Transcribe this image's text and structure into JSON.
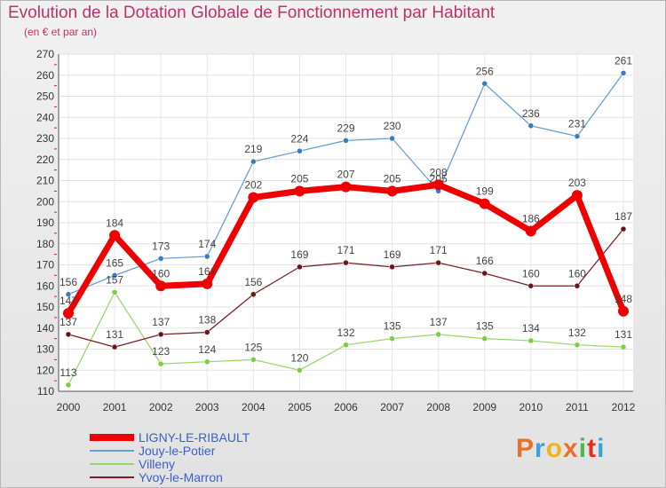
{
  "title": "Evolution de la Dotation Globale de Fonctionnement par Habitant",
  "subtitle": "(en € et par an)",
  "logo": {
    "text": "Proxiti",
    "colors": [
      "#e8702a",
      "#3aa0d8",
      "#f2b21e",
      "#e8702a",
      "#4db848",
      "#e0301e",
      "#3aa0d8"
    ]
  },
  "chart_data": {
    "type": "line",
    "x": [
      "2000",
      "2001",
      "2002",
      "2003",
      "2004",
      "2005",
      "2006",
      "2007",
      "2008",
      "2009",
      "2010",
      "2011",
      "2012"
    ],
    "ylim": [
      110,
      270
    ],
    "yticks": [
      110,
      120,
      130,
      140,
      150,
      160,
      170,
      180,
      190,
      200,
      210,
      220,
      230,
      240,
      250,
      260,
      270
    ],
    "grid": true,
    "legend_position": "bottom-left",
    "series": [
      {
        "name": "Jouy-le-Potier",
        "color": "#6b9fd0",
        "marker": "#3a7bc0",
        "width": 1.3,
        "values": [
          156,
          165,
          173,
          174,
          219,
          224,
          229,
          230,
          205,
          256,
          236,
          231,
          261
        ]
      },
      {
        "name": "Villeny",
        "color": "#9ad86a",
        "marker": "#7ccc44",
        "width": 1.3,
        "values": [
          113,
          157,
          123,
          124,
          125,
          120,
          132,
          135,
          137,
          135,
          134,
          132,
          131
        ]
      },
      {
        "name": "Yvoy-le-Marron",
        "color": "#7a1f25",
        "marker": "#6a1519",
        "width": 1.3,
        "values": [
          137,
          131,
          137,
          138,
          156,
          169,
          171,
          169,
          171,
          166,
          160,
          160,
          187
        ]
      },
      {
        "name": "LIGNY-LE-RIBAULT",
        "color": "#ee0000",
        "marker": "#ee0000",
        "width": 7,
        "values": [
          147,
          184,
          160,
          161,
          202,
          205,
          207,
          205,
          208,
          199,
          186,
          203,
          148
        ]
      }
    ]
  }
}
